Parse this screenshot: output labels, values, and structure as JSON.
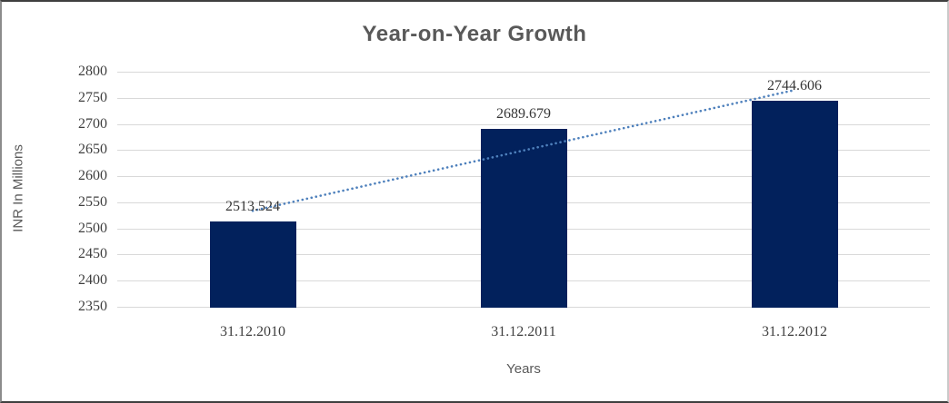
{
  "chart_data": {
    "type": "bar",
    "title": "Year-on-Year Growth",
    "categories": [
      "31.12.2010",
      "31.12.2011",
      "31.12.2012"
    ],
    "values": [
      2513.524,
      2689.679,
      2744.606
    ],
    "value_labels": [
      "2513.524",
      "2689.679",
      "2744.606"
    ],
    "xlabel": "Years",
    "ylabel": "INR In Millions",
    "ylim": [
      2350,
      2800
    ],
    "ytick_step": 50,
    "grid": true,
    "legend": "none",
    "trendline": {
      "type": "linear",
      "style": "dotted"
    },
    "colors": {
      "bar": "#02215C",
      "trendline": "#4E80BC",
      "gridline": "#D9D9D9",
      "title_text": "#595959",
      "tick_text": "#3F3F3F"
    }
  }
}
